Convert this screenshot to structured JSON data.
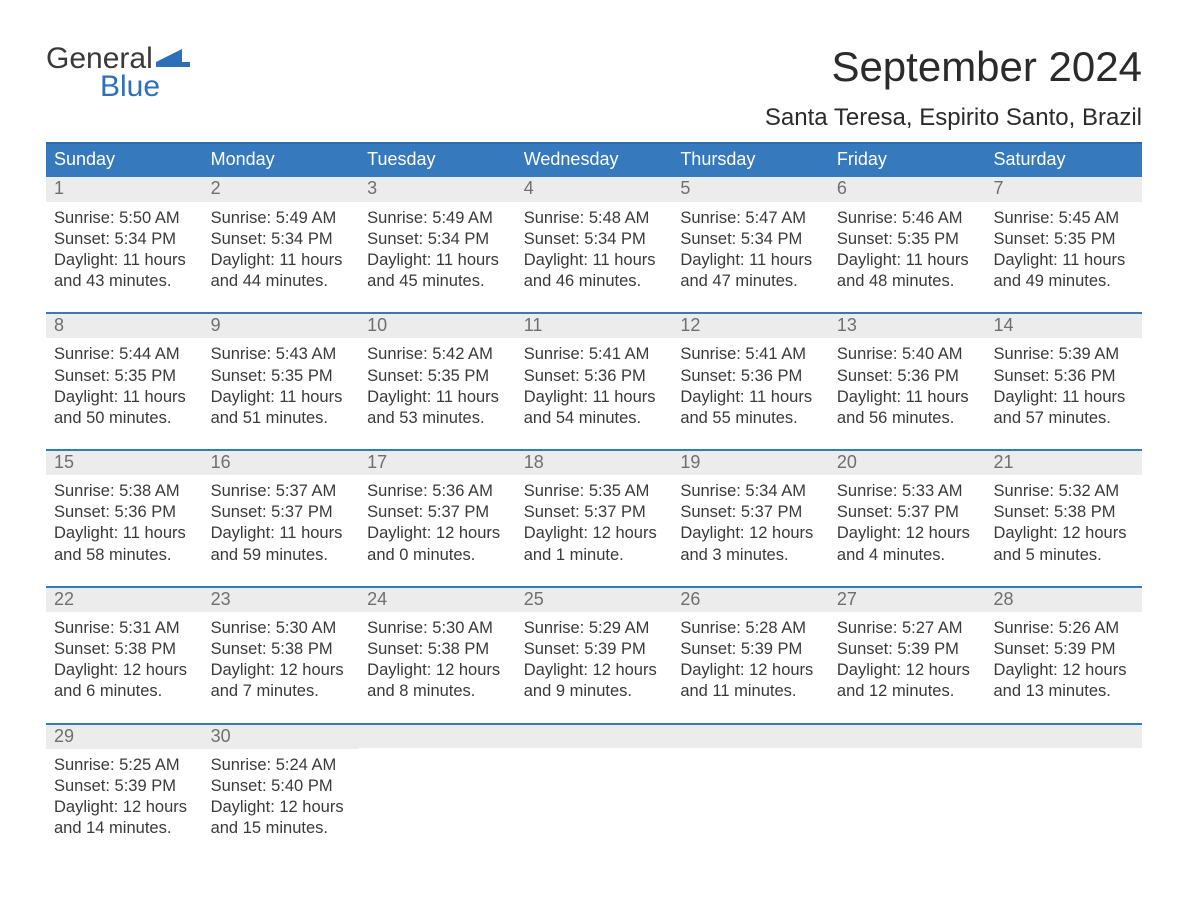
{
  "logo": {
    "line1": "General",
    "line2": "Blue",
    "flag_color": "#2d70b7"
  },
  "title": "September 2024",
  "location": "Santa Teresa, Espirito Santo, Brazil",
  "colors": {
    "header_bg": "#3679bd",
    "header_border": "#2d6aad",
    "daynum_bg": "#ececec",
    "daynum_text": "#6f6f6f",
    "body_text": "#3a3a3a",
    "logo_blue": "#2d70b7",
    "page_bg": "#ffffff"
  },
  "typography": {
    "title_fontsize": 42,
    "location_fontsize": 24,
    "dow_fontsize": 18,
    "daynum_fontsize": 18,
    "body_fontsize": 16.5,
    "logo_fontsize": 30
  },
  "layout": {
    "columns": 7,
    "rows": 5,
    "cell_border_top": "2px solid #3679bd"
  },
  "dow": [
    "Sunday",
    "Monday",
    "Tuesday",
    "Wednesday",
    "Thursday",
    "Friday",
    "Saturday"
  ],
  "weeks": [
    [
      {
        "n": "1",
        "sr": "Sunrise: 5:50 AM",
        "ss": "Sunset: 5:34 PM",
        "dl": "Daylight: 11 hours and 43 minutes."
      },
      {
        "n": "2",
        "sr": "Sunrise: 5:49 AM",
        "ss": "Sunset: 5:34 PM",
        "dl": "Daylight: 11 hours and 44 minutes."
      },
      {
        "n": "3",
        "sr": "Sunrise: 5:49 AM",
        "ss": "Sunset: 5:34 PM",
        "dl": "Daylight: 11 hours and 45 minutes."
      },
      {
        "n": "4",
        "sr": "Sunrise: 5:48 AM",
        "ss": "Sunset: 5:34 PM",
        "dl": "Daylight: 11 hours and 46 minutes."
      },
      {
        "n": "5",
        "sr": "Sunrise: 5:47 AM",
        "ss": "Sunset: 5:34 PM",
        "dl": "Daylight: 11 hours and 47 minutes."
      },
      {
        "n": "6",
        "sr": "Sunrise: 5:46 AM",
        "ss": "Sunset: 5:35 PM",
        "dl": "Daylight: 11 hours and 48 minutes."
      },
      {
        "n": "7",
        "sr": "Sunrise: 5:45 AM",
        "ss": "Sunset: 5:35 PM",
        "dl": "Daylight: 11 hours and 49 minutes."
      }
    ],
    [
      {
        "n": "8",
        "sr": "Sunrise: 5:44 AM",
        "ss": "Sunset: 5:35 PM",
        "dl": "Daylight: 11 hours and 50 minutes."
      },
      {
        "n": "9",
        "sr": "Sunrise: 5:43 AM",
        "ss": "Sunset: 5:35 PM",
        "dl": "Daylight: 11 hours and 51 minutes."
      },
      {
        "n": "10",
        "sr": "Sunrise: 5:42 AM",
        "ss": "Sunset: 5:35 PM",
        "dl": "Daylight: 11 hours and 53 minutes."
      },
      {
        "n": "11",
        "sr": "Sunrise: 5:41 AM",
        "ss": "Sunset: 5:36 PM",
        "dl": "Daylight: 11 hours and 54 minutes."
      },
      {
        "n": "12",
        "sr": "Sunrise: 5:41 AM",
        "ss": "Sunset: 5:36 PM",
        "dl": "Daylight: 11 hours and 55 minutes."
      },
      {
        "n": "13",
        "sr": "Sunrise: 5:40 AM",
        "ss": "Sunset: 5:36 PM",
        "dl": "Daylight: 11 hours and 56 minutes."
      },
      {
        "n": "14",
        "sr": "Sunrise: 5:39 AM",
        "ss": "Sunset: 5:36 PM",
        "dl": "Daylight: 11 hours and 57 minutes."
      }
    ],
    [
      {
        "n": "15",
        "sr": "Sunrise: 5:38 AM",
        "ss": "Sunset: 5:36 PM",
        "dl": "Daylight: 11 hours and 58 minutes."
      },
      {
        "n": "16",
        "sr": "Sunrise: 5:37 AM",
        "ss": "Sunset: 5:37 PM",
        "dl": "Daylight: 11 hours and 59 minutes."
      },
      {
        "n": "17",
        "sr": "Sunrise: 5:36 AM",
        "ss": "Sunset: 5:37 PM",
        "dl": "Daylight: 12 hours and 0 minutes."
      },
      {
        "n": "18",
        "sr": "Sunrise: 5:35 AM",
        "ss": "Sunset: 5:37 PM",
        "dl": "Daylight: 12 hours and 1 minute."
      },
      {
        "n": "19",
        "sr": "Sunrise: 5:34 AM",
        "ss": "Sunset: 5:37 PM",
        "dl": "Daylight: 12 hours and 3 minutes."
      },
      {
        "n": "20",
        "sr": "Sunrise: 5:33 AM",
        "ss": "Sunset: 5:37 PM",
        "dl": "Daylight: 12 hours and 4 minutes."
      },
      {
        "n": "21",
        "sr": "Sunrise: 5:32 AM",
        "ss": "Sunset: 5:38 PM",
        "dl": "Daylight: 12 hours and 5 minutes."
      }
    ],
    [
      {
        "n": "22",
        "sr": "Sunrise: 5:31 AM",
        "ss": "Sunset: 5:38 PM",
        "dl": "Daylight: 12 hours and 6 minutes."
      },
      {
        "n": "23",
        "sr": "Sunrise: 5:30 AM",
        "ss": "Sunset: 5:38 PM",
        "dl": "Daylight: 12 hours and 7 minutes."
      },
      {
        "n": "24",
        "sr": "Sunrise: 5:30 AM",
        "ss": "Sunset: 5:38 PM",
        "dl": "Daylight: 12 hours and 8 minutes."
      },
      {
        "n": "25",
        "sr": "Sunrise: 5:29 AM",
        "ss": "Sunset: 5:39 PM",
        "dl": "Daylight: 12 hours and 9 minutes."
      },
      {
        "n": "26",
        "sr": "Sunrise: 5:28 AM",
        "ss": "Sunset: 5:39 PM",
        "dl": "Daylight: 12 hours and 11 minutes."
      },
      {
        "n": "27",
        "sr": "Sunrise: 5:27 AM",
        "ss": "Sunset: 5:39 PM",
        "dl": "Daylight: 12 hours and 12 minutes."
      },
      {
        "n": "28",
        "sr": "Sunrise: 5:26 AM",
        "ss": "Sunset: 5:39 PM",
        "dl": "Daylight: 12 hours and 13 minutes."
      }
    ],
    [
      {
        "n": "29",
        "sr": "Sunrise: 5:25 AM",
        "ss": "Sunset: 5:39 PM",
        "dl": "Daylight: 12 hours and 14 minutes."
      },
      {
        "n": "30",
        "sr": "Sunrise: 5:24 AM",
        "ss": "Sunset: 5:40 PM",
        "dl": "Daylight: 12 hours and 15 minutes."
      },
      null,
      null,
      null,
      null,
      null
    ]
  ]
}
